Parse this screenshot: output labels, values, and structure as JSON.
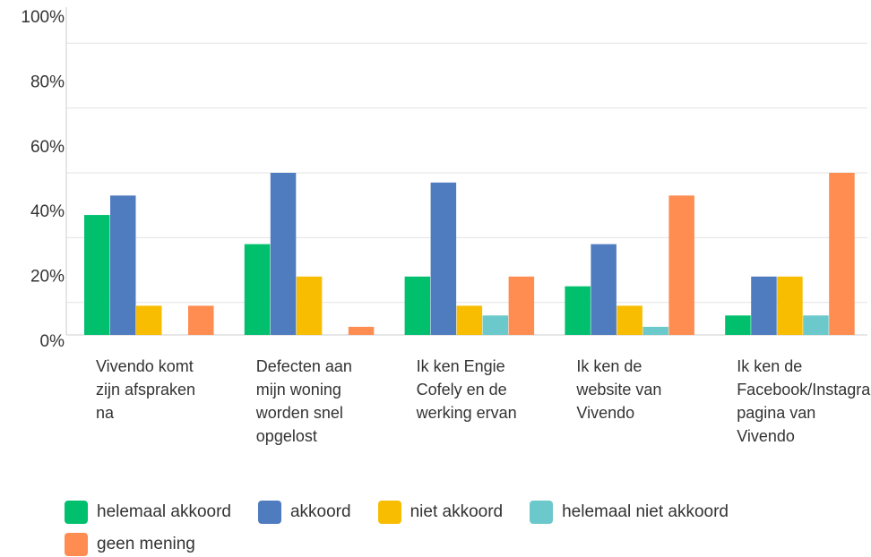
{
  "chart_data": {
    "type": "bar",
    "categories": [
      "Vivendo komt zijn afspraken na",
      "Defecten aan mijn woning worden snel opgelost",
      "Ik ken Engie Cofely en de werking ervan",
      "Ik ken de website van Vivendo",
      "Ik ken de Facebook/Instagram pagina van Vivendo"
    ],
    "series": [
      {
        "name": "helemaal akkoord",
        "color": "#00c06e",
        "values": [
          37,
          28,
          18,
          15,
          6
        ]
      },
      {
        "name": "akkoord",
        "color": "#4f7bbf",
        "values": [
          43,
          50,
          47,
          28,
          18
        ]
      },
      {
        "name": "niet akkoord",
        "color": "#f8bd00",
        "values": [
          9,
          18,
          9,
          9,
          18
        ]
      },
      {
        "name": "helemaal niet akkoord",
        "color": "#6bc9cc",
        "values": [
          0,
          0,
          6,
          2.5,
          6
        ]
      },
      {
        "name": "geen mening",
        "color": "#ff8c50",
        "values": [
          9,
          2.5,
          18,
          43,
          50
        ]
      }
    ],
    "ylim": [
      0,
      100
    ],
    "yticks": [
      {
        "value": 0,
        "label": "0%"
      },
      {
        "value": 20,
        "label": "20%"
      },
      {
        "value": 40,
        "label": "40%"
      },
      {
        "value": 60,
        "label": "60%"
      },
      {
        "value": 80,
        "label": "80%"
      },
      {
        "value": 100,
        "label": "100%"
      }
    ],
    "grid_ticks": [
      10,
      30,
      50,
      70,
      90
    ],
    "grid": true,
    "legend": "bottom"
  }
}
